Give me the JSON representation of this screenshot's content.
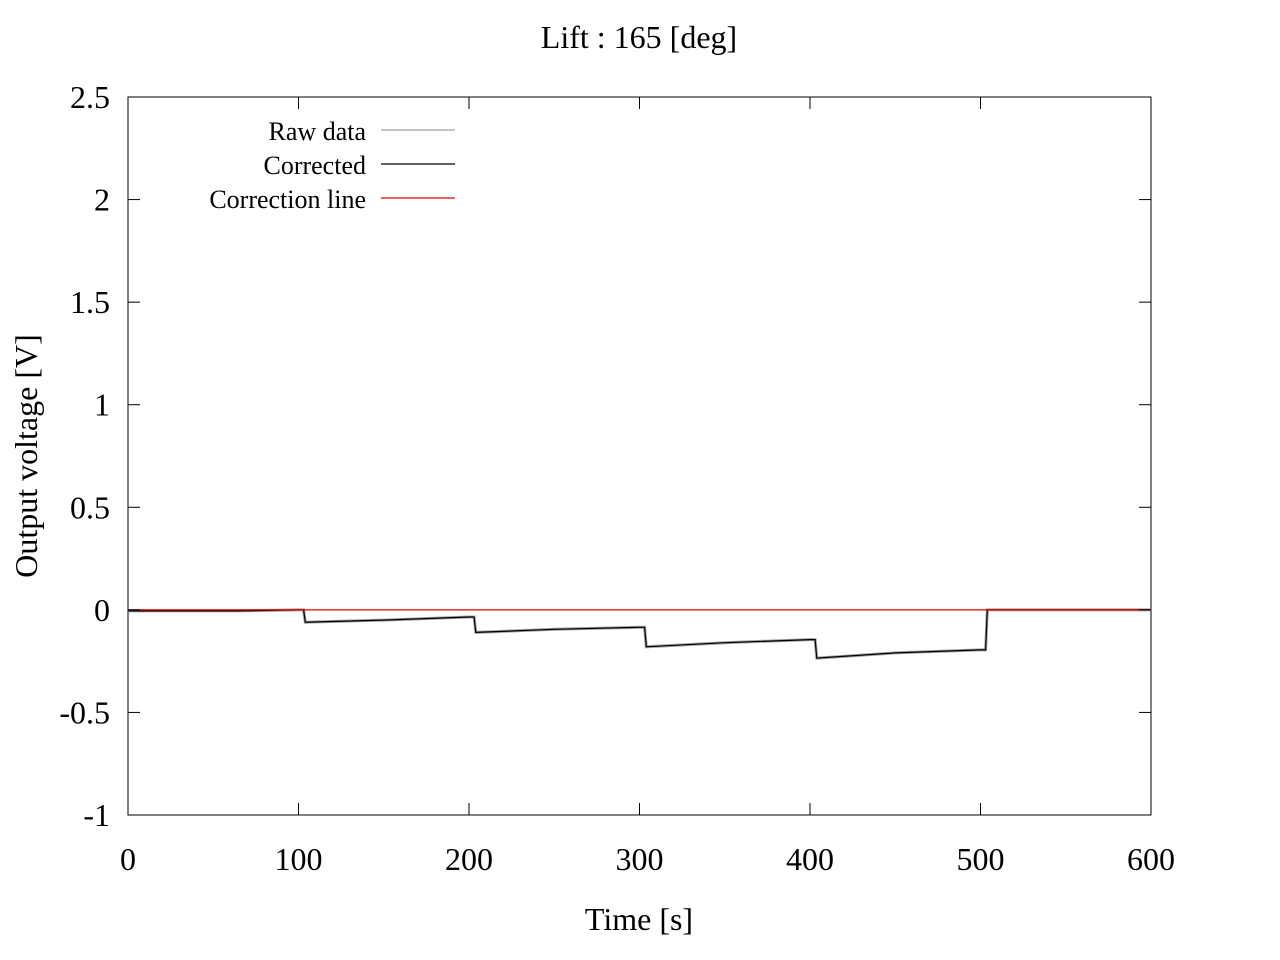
{
  "chart_data": {
    "type": "line",
    "title": "Lift : 165 [deg]",
    "xlabel": "Time [s]",
    "ylabel": "Output voltage [V]",
    "xlim": [
      0,
      600
    ],
    "ylim": [
      -1,
      2.5
    ],
    "xticks": [
      0,
      100,
      200,
      300,
      400,
      500,
      600
    ],
    "xtick_labels": [
      "0",
      "100",
      "200",
      "300",
      "400",
      "500",
      "600"
    ],
    "yticks": [
      -1,
      -0.5,
      0,
      0.5,
      1,
      1.5,
      2,
      2.5
    ],
    "ytick_labels": [
      "-1",
      "-0.5",
      "0",
      "0.5",
      "1",
      "1.5",
      "2",
      "2.5"
    ],
    "grid": false,
    "legend_position": "top-left",
    "series": [
      {
        "name": "Raw data",
        "color": "#a0a0a0",
        "x": [
          0,
          65,
          100,
          103,
          104,
          150,
          200,
          203,
          204,
          250,
          300,
          303,
          304,
          350,
          400,
          403,
          404,
          450,
          500,
          503,
          504,
          550,
          600
        ],
        "y": [
          -0.005,
          -0.005,
          0.0,
          0.0,
          -0.06,
          -0.05,
          -0.035,
          -0.035,
          -0.11,
          -0.095,
          -0.085,
          -0.085,
          -0.18,
          -0.16,
          -0.145,
          -0.145,
          -0.235,
          -0.21,
          -0.195,
          -0.195,
          0.0,
          0.0,
          0.0
        ]
      },
      {
        "name": "Corrected",
        "color": "#000000",
        "x": [
          0,
          65,
          100,
          103,
          104,
          150,
          200,
          203,
          204,
          250,
          300,
          303,
          304,
          350,
          400,
          403,
          404,
          450,
          500,
          503,
          504,
          550,
          600
        ],
        "y": [
          -0.005,
          -0.005,
          0.0,
          0.0,
          -0.06,
          -0.05,
          -0.035,
          -0.035,
          -0.11,
          -0.095,
          -0.085,
          -0.085,
          -0.18,
          -0.16,
          -0.145,
          -0.145,
          -0.235,
          -0.21,
          -0.195,
          -0.195,
          0.0,
          0.0,
          0.0
        ]
      },
      {
        "name": "Correction line",
        "color": "#e00000",
        "x": [
          0,
          600
        ],
        "y": [
          0.0,
          0.0
        ]
      }
    ]
  }
}
